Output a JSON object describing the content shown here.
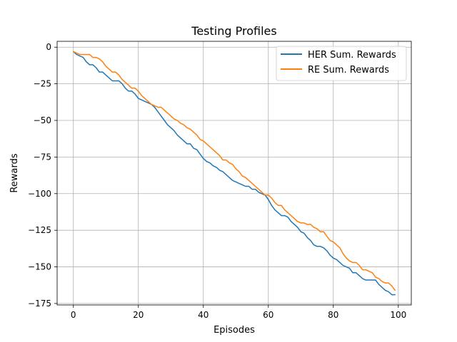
{
  "chart_data": {
    "type": "line",
    "title": "Testing Profiles",
    "xlabel": "Episodes",
    "ylabel": "Rewards",
    "xlim": [
      -5,
      104
    ],
    "ylim": [
      -176,
      4
    ],
    "xticks": [
      0,
      20,
      40,
      60,
      80,
      100
    ],
    "yticks": [
      0,
      -25,
      -50,
      -75,
      -100,
      -125,
      -150,
      -175
    ],
    "grid": true,
    "legend_position": "top-right",
    "series": [
      {
        "name": "HER Sum. Rewards",
        "color": "#1f77b4",
        "x": [
          0,
          1,
          2,
          3,
          4,
          5,
          6,
          7,
          8,
          9,
          10,
          11,
          12,
          13,
          14,
          15,
          16,
          17,
          18,
          19,
          20,
          21,
          22,
          23,
          24,
          25,
          26,
          27,
          28,
          29,
          30,
          31,
          32,
          33,
          34,
          35,
          36,
          37,
          38,
          39,
          40,
          41,
          42,
          43,
          44,
          45,
          46,
          47,
          48,
          49,
          50,
          51,
          52,
          53,
          54,
          55,
          56,
          57,
          58,
          59,
          60,
          61,
          62,
          63,
          64,
          65,
          66,
          67,
          68,
          69,
          70,
          71,
          72,
          73,
          74,
          75,
          76,
          77,
          78,
          79,
          80,
          81,
          82,
          83,
          84,
          85,
          86,
          87,
          88,
          89,
          90,
          91,
          92,
          93,
          94,
          95,
          96,
          97,
          98,
          99
        ],
        "y": [
          -3,
          -5,
          -6,
          -7,
          -10,
          -12,
          -12,
          -14,
          -17,
          -17,
          -19,
          -21,
          -23,
          -23,
          -23,
          -25,
          -28,
          -30,
          -30,
          -32,
          -35,
          -36,
          -37,
          -38,
          -39,
          -41,
          -44,
          -47,
          -50,
          -53,
          -55,
          -57,
          -60,
          -62,
          -64,
          -66,
          -66,
          -69,
          -70,
          -73,
          -76,
          -78,
          -79,
          -81,
          -82,
          -84,
          -85,
          -87,
          -89,
          -91,
          -92,
          -93,
          -94,
          -95,
          -95,
          -97,
          -97,
          -99,
          -100,
          -101,
          -104,
          -108,
          -111,
          -113,
          -115,
          -115,
          -116,
          -119,
          -121,
          -123,
          -126,
          -127,
          -130,
          -132,
          -135,
          -136,
          -136,
          -137,
          -139,
          -142,
          -144,
          -145,
          -147,
          -149,
          -150,
          -151,
          -154,
          -154,
          -156,
          -158,
          -159,
          -159,
          -159,
          -159,
          -162,
          -164,
          -166,
          -167,
          -169,
          -169
        ]
      },
      {
        "name": "RE Sum. Rewards",
        "color": "#ff7f0e",
        "x": [
          0,
          1,
          2,
          3,
          4,
          5,
          6,
          7,
          8,
          9,
          10,
          11,
          12,
          13,
          14,
          15,
          16,
          17,
          18,
          19,
          20,
          21,
          22,
          23,
          24,
          25,
          26,
          27,
          28,
          29,
          30,
          31,
          32,
          33,
          34,
          35,
          36,
          37,
          38,
          39,
          40,
          41,
          42,
          43,
          44,
          45,
          46,
          47,
          48,
          49,
          50,
          51,
          52,
          53,
          54,
          55,
          56,
          57,
          58,
          59,
          60,
          61,
          62,
          63,
          64,
          65,
          66,
          67,
          68,
          69,
          70,
          71,
          72,
          73,
          74,
          75,
          76,
          77,
          78,
          79,
          80,
          81,
          82,
          83,
          84,
          85,
          86,
          87,
          88,
          89,
          90,
          91,
          92,
          93,
          94,
          95,
          96,
          97,
          98,
          99
        ],
        "y": [
          -3,
          -4,
          -5,
          -5,
          -5,
          -5,
          -7,
          -7,
          -8,
          -10,
          -13,
          -15,
          -17,
          -17,
          -19,
          -22,
          -24,
          -26,
          -28,
          -28,
          -30,
          -33,
          -35,
          -37,
          -39,
          -40,
          -41,
          -41,
          -43,
          -45,
          -47,
          -49,
          -50,
          -52,
          -53,
          -55,
          -56,
          -58,
          -60,
          -63,
          -64,
          -66,
          -68,
          -70,
          -72,
          -74,
          -77,
          -77,
          -79,
          -80,
          -83,
          -85,
          -88,
          -89,
          -91,
          -93,
          -95,
          -97,
          -99,
          -101,
          -101,
          -103,
          -106,
          -108,
          -108,
          -111,
          -113,
          -115,
          -117,
          -119,
          -120,
          -120,
          -121,
          -121,
          -123,
          -124,
          -126,
          -126,
          -129,
          -132,
          -133,
          -135,
          -137,
          -141,
          -144,
          -146,
          -147,
          -147,
          -149,
          -152,
          -152,
          -153,
          -154,
          -157,
          -158,
          -160,
          -161,
          -161,
          -163,
          -166
        ]
      }
    ]
  }
}
